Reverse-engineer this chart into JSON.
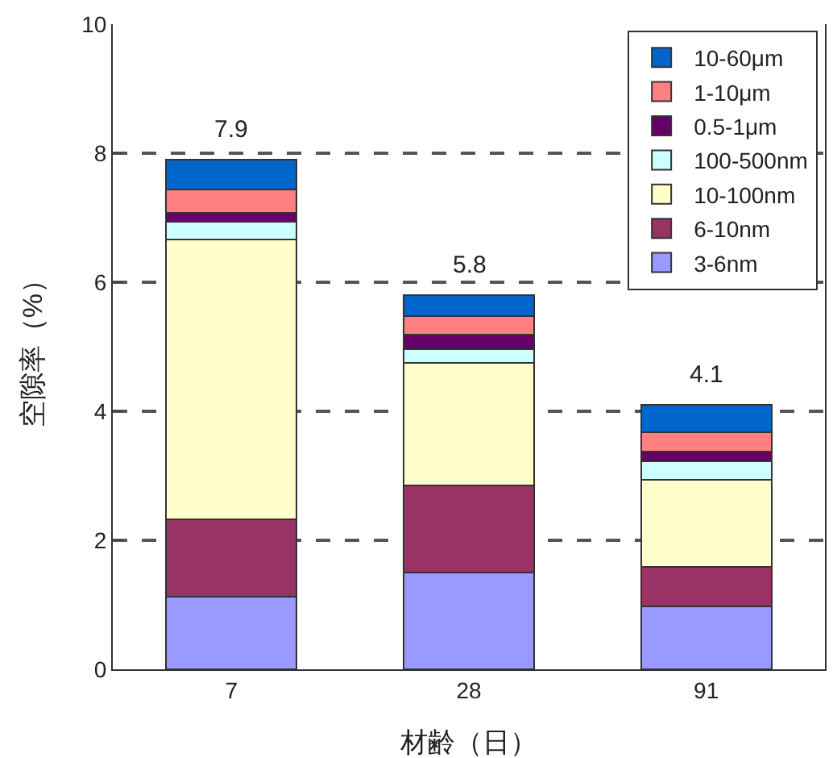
{
  "chart_data": {
    "type": "bar",
    "stacked": true,
    "categories": [
      "7",
      "28",
      "91"
    ],
    "xlabel": "材齢（日）",
    "ylabel": "空隙率（%）",
    "series": [
      {
        "name": "3-6nm",
        "color": "#9999ff",
        "values": [
          1.12,
          1.5,
          0.97
        ]
      },
      {
        "name": "6-10nm",
        "color": "#993366",
        "values": [
          1.2,
          1.35,
          0.62
        ]
      },
      {
        "name": "10-100nm",
        "color": "#ffffcc",
        "values": [
          4.34,
          1.9,
          1.35
        ]
      },
      {
        "name": "100-500nm",
        "color": "#ccffff",
        "values": [
          0.28,
          0.21,
          0.29
        ]
      },
      {
        "name": "0.5-1μm",
        "color": "#660066",
        "values": [
          0.13,
          0.23,
          0.15
        ]
      },
      {
        "name": "1-10μm",
        "color": "#ff8080",
        "values": [
          0.37,
          0.28,
          0.29
        ]
      },
      {
        "name": "10-60μm",
        "color": "#0066cc",
        "values": [
          0.46,
          0.33,
          0.43
        ]
      }
    ],
    "totals": [
      "7.9",
      "5.8",
      "4.1"
    ],
    "ylim": [
      0,
      10
    ],
    "yticks": [
      0,
      2,
      4,
      6,
      8,
      10
    ],
    "grid": "y",
    "legend": "top right"
  }
}
